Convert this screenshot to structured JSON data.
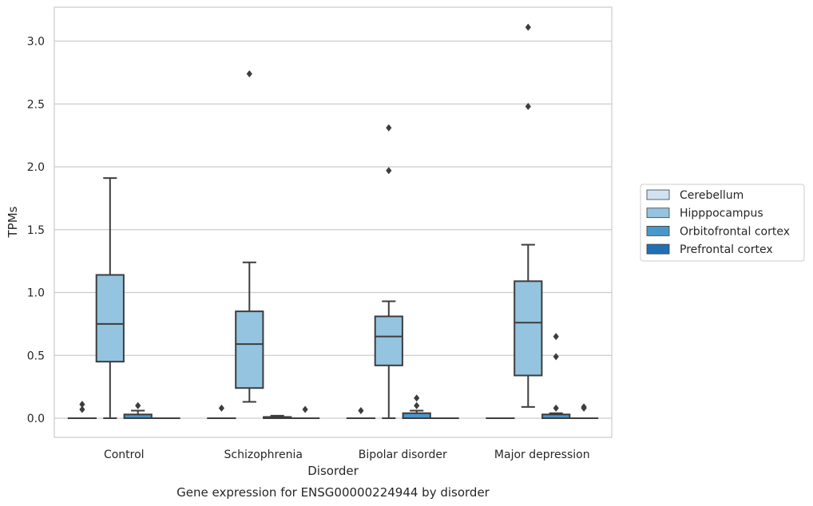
{
  "chart_data": {
    "type": "box",
    "title": "",
    "caption": "Gene expression for ENSG00000224944 by disorder",
    "xlabel": "Disorder",
    "ylabel": "TPMs",
    "ylim": [
      -0.15,
      3.27
    ],
    "yticks": [
      0.0,
      0.5,
      1.0,
      1.5,
      2.0,
      2.5,
      3.0
    ],
    "ytick_labels": [
      "0.0",
      "0.5",
      "1.0",
      "1.5",
      "2.0",
      "2.5",
      "3.0"
    ],
    "grid": "horizontal",
    "legend_position": "right",
    "categories": [
      "Control",
      "Schizophrenia",
      "Bipolar disorder",
      "Major depression"
    ],
    "series": [
      {
        "name": "Cerebellum",
        "color": "#d0e2f2",
        "boxes": [
          {
            "q1": 0.0,
            "median": 0.0,
            "q3": 0.0,
            "whislo": 0.0,
            "whishi": 0.0,
            "fliers": [
              0.07,
              0.11
            ]
          },
          {
            "q1": 0.0,
            "median": 0.0,
            "q3": 0.0,
            "whislo": 0.0,
            "whishi": 0.0,
            "fliers": [
              0.08
            ]
          },
          {
            "q1": 0.0,
            "median": 0.0,
            "q3": 0.0,
            "whislo": 0.0,
            "whishi": 0.0,
            "fliers": [
              0.06
            ]
          },
          {
            "q1": 0.0,
            "median": 0.0,
            "q3": 0.0,
            "whislo": 0.0,
            "whishi": 0.0,
            "fliers": []
          }
        ]
      },
      {
        "name": "Hipppocampus",
        "color": "#94c4df",
        "boxes": [
          {
            "q1": 0.45,
            "median": 0.75,
            "q3": 1.14,
            "whislo": 0.0,
            "whishi": 1.91,
            "fliers": []
          },
          {
            "q1": 0.24,
            "median": 0.59,
            "q3": 0.85,
            "whislo": 0.13,
            "whishi": 1.24,
            "fliers": [
              2.74
            ]
          },
          {
            "q1": 0.42,
            "median": 0.65,
            "q3": 0.81,
            "whislo": 0.0,
            "whishi": 0.93,
            "fliers": [
              1.97,
              2.31
            ]
          },
          {
            "q1": 0.34,
            "median": 0.76,
            "q3": 1.09,
            "whislo": 0.09,
            "whishi": 1.38,
            "fliers": [
              2.48,
              3.11
            ]
          }
        ]
      },
      {
        "name": "Orbitofrontal cortex",
        "color": "#4a98c9",
        "boxes": [
          {
            "q1": 0.0,
            "median": 0.0,
            "q3": 0.03,
            "whislo": 0.0,
            "whishi": 0.06,
            "fliers": [
              0.1
            ]
          },
          {
            "q1": 0.0,
            "median": 0.0,
            "q3": 0.01,
            "whislo": 0.0,
            "whishi": 0.02,
            "fliers": []
          },
          {
            "q1": 0.0,
            "median": 0.0,
            "q3": 0.04,
            "whislo": 0.0,
            "whishi": 0.06,
            "fliers": [
              0.1,
              0.16
            ]
          },
          {
            "q1": 0.0,
            "median": 0.0,
            "q3": 0.03,
            "whislo": 0.0,
            "whishi": 0.04,
            "fliers": [
              0.08,
              0.49,
              0.65
            ]
          }
        ]
      },
      {
        "name": "Prefrontal cortex",
        "color": "#2070b4",
        "boxes": [
          {
            "q1": 0.0,
            "median": 0.0,
            "q3": 0.0,
            "whislo": 0.0,
            "whishi": 0.0,
            "fliers": []
          },
          {
            "q1": 0.0,
            "median": 0.0,
            "q3": 0.0,
            "whislo": 0.0,
            "whishi": 0.0,
            "fliers": [
              0.07
            ]
          },
          {
            "q1": 0.0,
            "median": 0.0,
            "q3": 0.0,
            "whislo": 0.0,
            "whishi": 0.0,
            "fliers": []
          },
          {
            "q1": 0.0,
            "median": 0.0,
            "q3": 0.0,
            "whislo": 0.0,
            "whishi": 0.0,
            "fliers": [
              0.08,
              0.09
            ]
          }
        ]
      }
    ]
  }
}
